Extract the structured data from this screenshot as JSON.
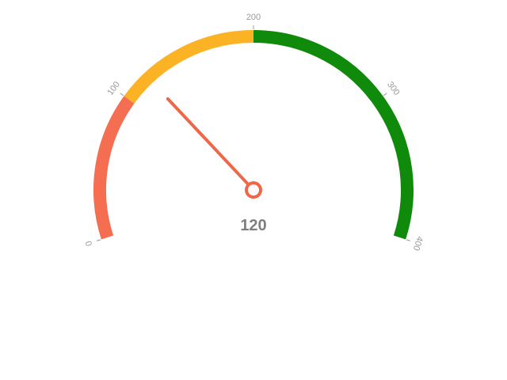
{
  "chart_data": {
    "type": "gauge",
    "min": 0,
    "max": 400,
    "value": 120,
    "value_label": "120",
    "ticks": [
      {
        "value": 0,
        "label": "0"
      },
      {
        "value": 100,
        "label": "100"
      },
      {
        "value": 200,
        "label": "200"
      },
      {
        "value": 300,
        "label": "300"
      },
      {
        "value": 400,
        "label": "400"
      }
    ],
    "bands": [
      {
        "from": 0,
        "to": 100,
        "color": "#f56e51"
      },
      {
        "from": 100,
        "to": 200,
        "color": "#fbb224"
      },
      {
        "from": 200,
        "to": 400,
        "color": "#0f8a0b"
      }
    ],
    "needle_color": "#ee6749",
    "tick_color": "#999999",
    "value_color": "#7f7f7f"
  }
}
